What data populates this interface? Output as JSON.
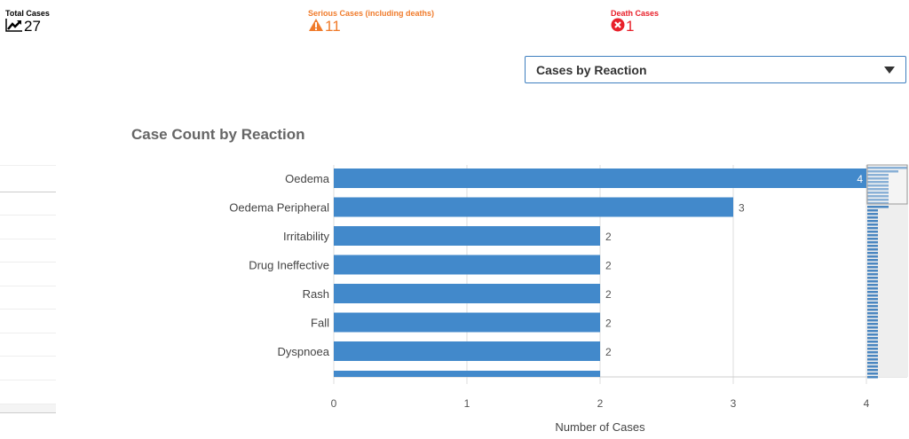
{
  "kpis": {
    "total": {
      "label": "Total Cases",
      "value": "27",
      "icon": "trend-up-icon",
      "color": "#000000"
    },
    "serious": {
      "label": "Serious Cases (including deaths)",
      "value": "11",
      "icon": "warning-icon",
      "color": "#f07b2b"
    },
    "death": {
      "label": "Death Cases",
      "value": "1",
      "icon": "error-circle-icon",
      "color": "#e8202a"
    }
  },
  "dropdown": {
    "selected": "Cases by Reaction"
  },
  "chart_title": "Case Count by Reaction",
  "chart_data": {
    "type": "bar",
    "orientation": "horizontal",
    "title": "Case Count by Reaction",
    "categories": [
      "Oedema",
      "Oedema Peripheral",
      "Irritability",
      "Drug Ineffective",
      "Rash",
      "Fall",
      "Dyspnoea"
    ],
    "values": [
      4,
      3,
      2,
      2,
      2,
      2,
      2
    ],
    "partial_next_value": 2,
    "xlabel": "Number of Cases",
    "ylabel": "",
    "xlim": [
      0,
      4
    ],
    "xticks": [
      "0",
      "1",
      "2",
      "3",
      "4"
    ],
    "bar_color": "#4289cb",
    "grid": true
  }
}
